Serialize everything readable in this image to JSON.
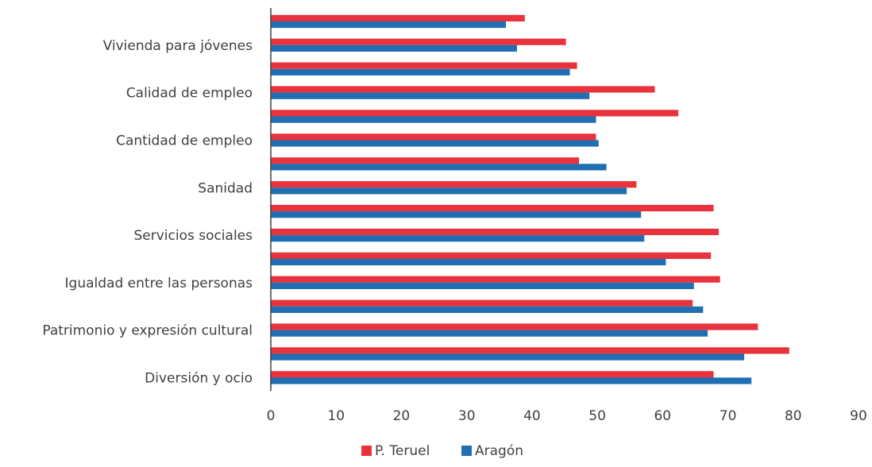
{
  "chart_data": {
    "type": "bar",
    "orientation": "horizontal",
    "categories": [
      "",
      "Vivienda para jóvenes",
      "",
      "Calidad de empleo",
      "",
      "Cantidad de empleo",
      "",
      "Sanidad",
      "",
      "Servicios sociales",
      "",
      "Igualdad entre las personas",
      "",
      "Patrimonio y expresión cultural",
      "",
      "Diversión y ocio"
    ],
    "series": [
      {
        "name": "P. Teruel",
        "color": "#e8323c",
        "values": [
          38.9,
          45.2,
          46.9,
          58.8,
          62.4,
          49.8,
          47.2,
          56.0,
          67.8,
          68.6,
          67.4,
          68.8,
          64.6,
          74.6,
          79.4,
          67.8
        ]
      },
      {
        "name": "Aragón",
        "color": "#1f6fb2",
        "values": [
          36.0,
          37.7,
          45.8,
          48.8,
          49.8,
          50.2,
          51.4,
          54.5,
          56.7,
          57.2,
          60.5,
          64.8,
          66.2,
          66.9,
          72.5,
          73.6
        ]
      }
    ],
    "xlim": [
      0,
      90
    ],
    "xticks": [
      "0",
      "10",
      "20",
      "30",
      "40",
      "50",
      "60",
      "70",
      "80",
      "90"
    ],
    "grid": false,
    "legend_position": "bottom"
  }
}
